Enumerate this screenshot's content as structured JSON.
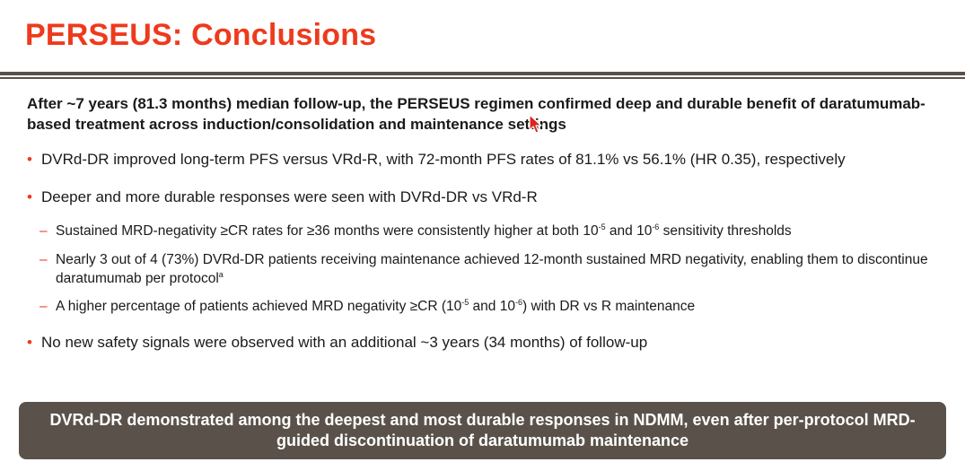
{
  "colors": {
    "accent": "#ee3a1c",
    "rule": "#595149",
    "banner_bg": "#5a524a",
    "text": "#1a1a1a"
  },
  "slide": {
    "title": "PERSEUS: Conclusions",
    "intro": "After ~7 years (81.3 months) median follow-up, the PERSEUS regimen confirmed deep and durable benefit of daratumumab-based treatment across induction/consolidation and maintenance settings",
    "bullet_marker": "•",
    "sub_marker": "–",
    "bullets": [
      {
        "text": "DVRd-DR improved long-term PFS versus VRd-R, with 72-month PFS rates of 81.1% vs 56.1% (HR 0.35), respectively"
      },
      {
        "text": "Deeper and more durable responses were seen with DVRd-DR vs VRd-R"
      },
      {
        "text": "No new safety signals were observed with an additional ~3 years (34 months) of follow-up"
      }
    ],
    "sub_bullets": [
      {
        "part1": "Sustained MRD-negativity ≥CR rates for ≥36 months were consistently higher at both 10",
        "sup1": "-5",
        "part2": " and 10",
        "sup2": "-6",
        "part3": " sensitivity thresholds"
      },
      {
        "text": "Nearly 3 out of 4 (73%) DVRd-DR patients receiving maintenance achieved 12-month sustained MRD negativity, enabling them to discontinue daratumumab per protocol",
        "sup": "a"
      },
      {
        "part1": "A higher percentage of patients achieved MRD negativity ≥CR (10",
        "sup1": "-5",
        "part2": " and 10",
        "sup2": "-6",
        "part3": ") with DR vs R maintenance"
      }
    ],
    "banner": "DVRd-DR demonstrated among the deepest and most durable responses in NDMM, even after per-protocol MRD-guided discontinuation of daratumumab maintenance"
  }
}
